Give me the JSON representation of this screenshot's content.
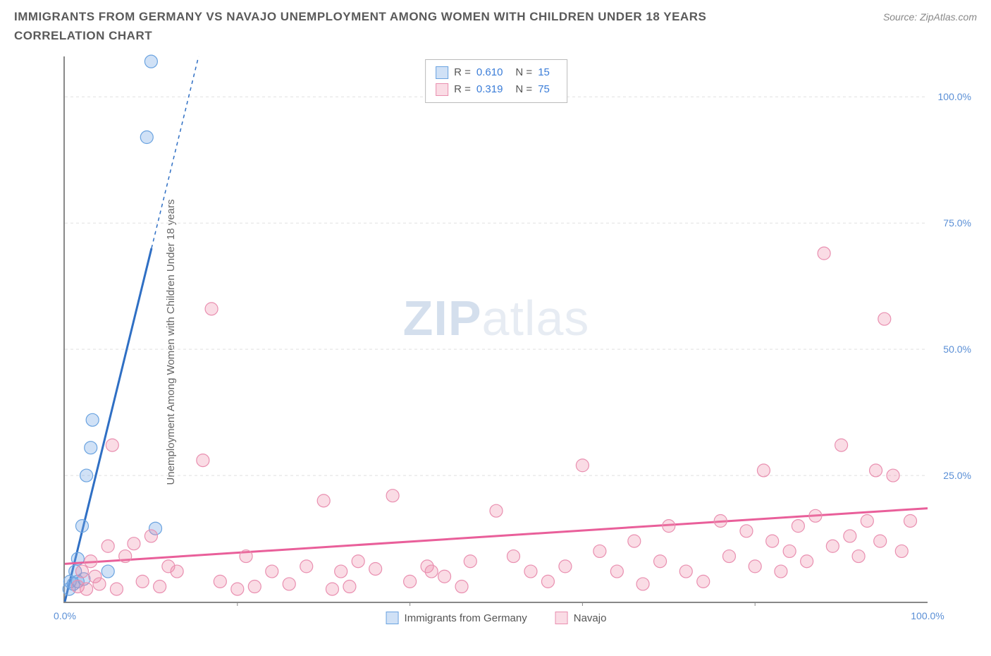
{
  "title": "IMMIGRANTS FROM GERMANY VS NAVAJO UNEMPLOYMENT AMONG WOMEN WITH CHILDREN UNDER 18 YEARS CORRELATION CHART",
  "source": "Source: ZipAtlas.com",
  "ylabel": "Unemployment Among Women with Children Under 18 years",
  "watermark_bold": "ZIP",
  "watermark_light": "atlas",
  "chart": {
    "type": "scatter",
    "background_color": "#ffffff",
    "grid_color": "#e0e0e0",
    "axis_color": "#888888",
    "tick_label_color": "#5a8fd6",
    "xlim": [
      0,
      100
    ],
    "ylim": [
      0,
      108
    ],
    "xticks": [
      {
        "v": 0,
        "label": "0.0%"
      },
      {
        "v": 100,
        "label": "100.0%"
      }
    ],
    "xticks_minor": [
      20,
      40,
      60,
      80
    ],
    "yticks": [
      {
        "v": 25,
        "label": "25.0%"
      },
      {
        "v": 50,
        "label": "50.0%"
      },
      {
        "v": 75,
        "label": "75.0%"
      },
      {
        "v": 100,
        "label": "100.0%"
      }
    ],
    "series": [
      {
        "name": "Immigrants from Germany",
        "label": "Immigrants from Germany",
        "stats": {
          "R": "0.610",
          "N": "15"
        },
        "marker_color_fill": "rgba(120,170,230,0.35)",
        "marker_color_stroke": "#6aa3e0",
        "marker_radius": 9,
        "line_color": "#2f6fc4",
        "line_width": 3,
        "trend": {
          "x1": 0,
          "y1": 0,
          "x2": 15.5,
          "y2": 108,
          "solid_until_y": 70
        },
        "points": [
          [
            0.5,
            2.5
          ],
          [
            0.6,
            4
          ],
          [
            1.0,
            3.5
          ],
          [
            1.2,
            6
          ],
          [
            1.5,
            8.5
          ],
          [
            1.5,
            4
          ],
          [
            2.0,
            15
          ],
          [
            2.5,
            25
          ],
          [
            3.0,
            30.5
          ],
          [
            3.2,
            36
          ],
          [
            5.0,
            6
          ],
          [
            10.5,
            14.5
          ],
          [
            9.5,
            92
          ],
          [
            10.0,
            107
          ],
          [
            2.2,
            4.5
          ]
        ]
      },
      {
        "name": "Navajo",
        "label": "Navajo",
        "stats": {
          "R": "0.319",
          "N": "75"
        },
        "marker_color_fill": "rgba(240,140,170,0.30)",
        "marker_color_stroke": "#e98fb0",
        "marker_radius": 9,
        "line_color": "#e95f9a",
        "line_width": 3,
        "trend": {
          "x1": 0,
          "y1": 7.5,
          "x2": 100,
          "y2": 18.5
        },
        "points": [
          [
            1.5,
            3
          ],
          [
            2,
            6
          ],
          [
            2.5,
            2.5
          ],
          [
            3,
            8
          ],
          [
            3.5,
            5
          ],
          [
            4,
            3.5
          ],
          [
            5,
            11
          ],
          [
            5.5,
            31
          ],
          [
            6,
            2.5
          ],
          [
            7,
            9
          ],
          [
            8,
            11.5
          ],
          [
            9,
            4
          ],
          [
            10,
            13
          ],
          [
            11,
            3
          ],
          [
            12,
            7
          ],
          [
            13,
            6
          ],
          [
            16,
            28
          ],
          [
            17,
            58
          ],
          [
            18,
            4
          ],
          [
            20,
            2.5
          ],
          [
            21,
            9
          ],
          [
            22,
            3
          ],
          [
            24,
            6
          ],
          [
            26,
            3.5
          ],
          [
            28,
            7
          ],
          [
            30,
            20
          ],
          [
            31,
            2.5
          ],
          [
            32,
            6
          ],
          [
            33,
            3
          ],
          [
            34,
            8
          ],
          [
            36,
            6.5
          ],
          [
            38,
            21
          ],
          [
            40,
            4
          ],
          [
            42,
            7
          ],
          [
            42.5,
            6
          ],
          [
            44,
            5
          ],
          [
            46,
            3
          ],
          [
            47,
            8
          ],
          [
            50,
            18
          ],
          [
            52,
            9
          ],
          [
            54,
            6
          ],
          [
            56,
            4
          ],
          [
            58,
            7
          ],
          [
            60,
            27
          ],
          [
            62,
            10
          ],
          [
            64,
            6
          ],
          [
            66,
            12
          ],
          [
            67,
            3.5
          ],
          [
            69,
            8
          ],
          [
            70,
            15
          ],
          [
            72,
            6
          ],
          [
            74,
            4
          ],
          [
            76,
            16
          ],
          [
            77,
            9
          ],
          [
            79,
            14
          ],
          [
            80,
            7
          ],
          [
            81,
            26
          ],
          [
            82,
            12
          ],
          [
            83,
            6
          ],
          [
            84,
            10
          ],
          [
            85,
            15
          ],
          [
            86,
            8
          ],
          [
            87,
            17
          ],
          [
            88,
            69
          ],
          [
            89,
            11
          ],
          [
            90,
            31
          ],
          [
            91,
            13
          ],
          [
            92,
            9
          ],
          [
            93,
            16
          ],
          [
            94,
            26
          ],
          [
            94.5,
            12
          ],
          [
            95,
            56
          ],
          [
            96,
            25
          ],
          [
            97,
            10
          ],
          [
            98,
            16
          ]
        ]
      }
    ]
  },
  "legend_top": {
    "r_label": "R =",
    "n_label": "N ="
  }
}
